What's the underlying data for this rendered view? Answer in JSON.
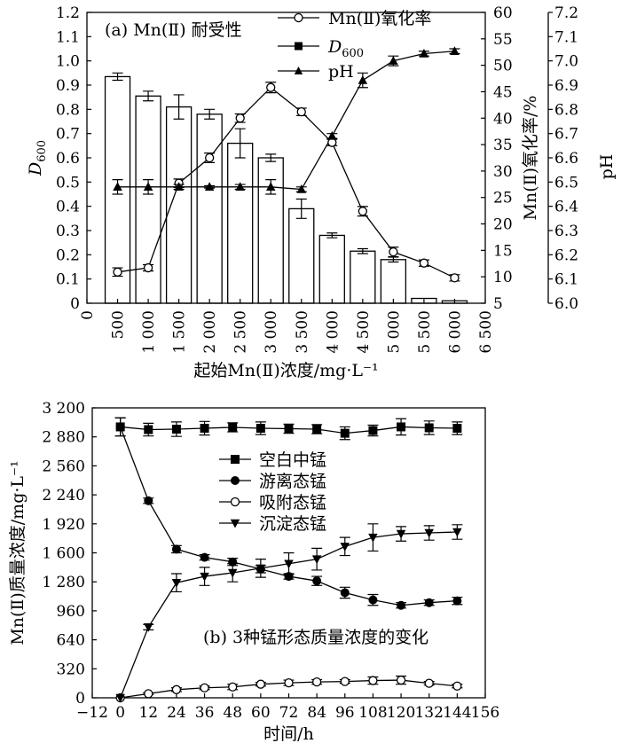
{
  "chart_data": [
    {
      "type": "bar",
      "panel_label": "(a) Mn(Ⅱ) 耐受性",
      "xlabel": "起始Mn(Ⅱ)浓度/mg·L⁻¹",
      "ylabel": "D600",
      "ylabel2": "Mn(Ⅱ)氧化率/%",
      "ylabel3": "pH",
      "xlim": [
        0,
        6500
      ],
      "ylim": [
        0,
        1.2
      ],
      "y2lim": [
        5,
        60
      ],
      "y3lim": [
        6.0,
        7.2
      ],
      "x_ticks": [
        "0",
        "500",
        "1 000",
        "1 500",
        "2 000",
        "2 500",
        "3 000",
        "3 500",
        "4 000",
        "4 500",
        "5 000",
        "5 500",
        "6 000",
        "6 500"
      ],
      "y_ticks": [
        "0",
        "0.1",
        "0.2",
        "0.3",
        "0.4",
        "0.5",
        "0.6",
        "0.7",
        "0.8",
        "0.9",
        "1.0",
        "1.1",
        "1.2"
      ],
      "y2_ticks": [
        "5",
        "10",
        "15",
        "20",
        "25",
        "30",
        "35",
        "40",
        "45",
        "50",
        "55",
        "60"
      ],
      "y3_ticks": [
        "6.0",
        "6.1",
        "6.2",
        "6.3",
        "6.4",
        "6.5",
        "6.6",
        "6.7",
        "6.8",
        "6.9",
        "7.0",
        "7.1",
        "7.2"
      ],
      "legend_position": "top-right",
      "x": [
        500,
        1000,
        1500,
        2000,
        2500,
        3000,
        3500,
        4000,
        4500,
        5000,
        5500,
        6000
      ],
      "series": [
        {
          "name": "Mn(Ⅱ)氧化率",
          "kind": "line",
          "marker": "open-circle",
          "axis": "y2",
          "values": [
            10.9,
            11.7,
            27.7,
            32.5,
            40.0,
            45.8,
            41.2,
            35.4,
            22.4,
            14.7,
            12.6,
            9.8
          ],
          "errors": [
            0.8,
            0.6,
            0.8,
            0.9,
            0.8,
            1.0,
            0.7,
            0.6,
            0.9,
            0.9,
            0.6,
            0.6
          ]
        },
        {
          "name": "D600",
          "kind": "bar",
          "marker": "filled-square",
          "axis": "y",
          "values": [
            0.935,
            0.855,
            0.81,
            0.78,
            0.66,
            0.6,
            0.39,
            0.28,
            0.215,
            0.18,
            0.02,
            0.01
          ],
          "errors": [
            0.015,
            0.02,
            0.05,
            0.02,
            0.06,
            0.015,
            0.04,
            0.01,
            0.01,
            0.01,
            0.0,
            0.0
          ]
        },
        {
          "name": "pH",
          "kind": "line",
          "marker": "filled-triangle",
          "axis": "y3",
          "values": [
            6.48,
            6.48,
            6.48,
            6.48,
            6.48,
            6.48,
            6.47,
            6.69,
            6.92,
            7.0,
            7.03,
            7.04
          ],
          "errors": [
            0.03,
            0.03,
            0.01,
            0.005,
            0.01,
            0.03,
            0.01,
            0.01,
            0.03,
            0.02,
            0.01,
            0.01
          ]
        }
      ]
    },
    {
      "type": "line",
      "panel_label": "(b) 3种锰形态质量浓度的变化",
      "xlabel": "时间/h",
      "ylabel": "Mn(Ⅱ)质量浓度/mg·L⁻¹",
      "xlim": [
        -12,
        156
      ],
      "ylim": [
        0,
        3200
      ],
      "x_ticks": [
        "−12",
        "0",
        "12",
        "24",
        "36",
        "48",
        "60",
        "72",
        "84",
        "96",
        "108",
        "120",
        "132",
        "144",
        "156"
      ],
      "y_ticks": [
        "0",
        "320",
        "640",
        "960",
        "1 280",
        "1 600",
        "1 920",
        "2 240",
        "2 560",
        "2 880",
        "3 200"
      ],
      "legend_position": "center-right",
      "x": [
        0,
        12,
        24,
        36,
        48,
        60,
        72,
        84,
        96,
        108,
        120,
        132,
        144
      ],
      "series": [
        {
          "name": "空白中锰",
          "marker": "filled-square",
          "values": [
            2990,
            2960,
            2965,
            2975,
            2985,
            2975,
            2970,
            2965,
            2920,
            2950,
            2990,
            2980,
            2975
          ],
          "errors": [
            100,
            70,
            80,
            75,
            50,
            70,
            50,
            50,
            70,
            60,
            90,
            75,
            70
          ]
        },
        {
          "name": "游离态锰",
          "marker": "filled-circle",
          "values": [
            2990,
            2175,
            1640,
            1550,
            1500,
            1420,
            1340,
            1290,
            1160,
            1080,
            1020,
            1050,
            1070
          ],
          "errors": [
            100,
            30,
            40,
            30,
            40,
            40,
            30,
            50,
            60,
            60,
            30,
            30,
            40
          ]
        },
        {
          "name": "吸附态锰",
          "marker": "open-circle",
          "values": [
            0,
            45,
            90,
            110,
            120,
            150,
            165,
            175,
            180,
            190,
            195,
            160,
            130
          ],
          "errors": [
            0,
            10,
            20,
            20,
            30,
            20,
            30,
            25,
            20,
            40,
            45,
            20,
            20
          ]
        },
        {
          "name": "沉淀态锰",
          "marker": "filled-triangle-down",
          "values": [
            0,
            780,
            1270,
            1340,
            1380,
            1430,
            1480,
            1530,
            1670,
            1770,
            1810,
            1820,
            1830
          ],
          "errors": [
            0,
            30,
            100,
            100,
            100,
            100,
            120,
            120,
            100,
            150,
            80,
            80,
            80
          ]
        }
      ]
    }
  ]
}
